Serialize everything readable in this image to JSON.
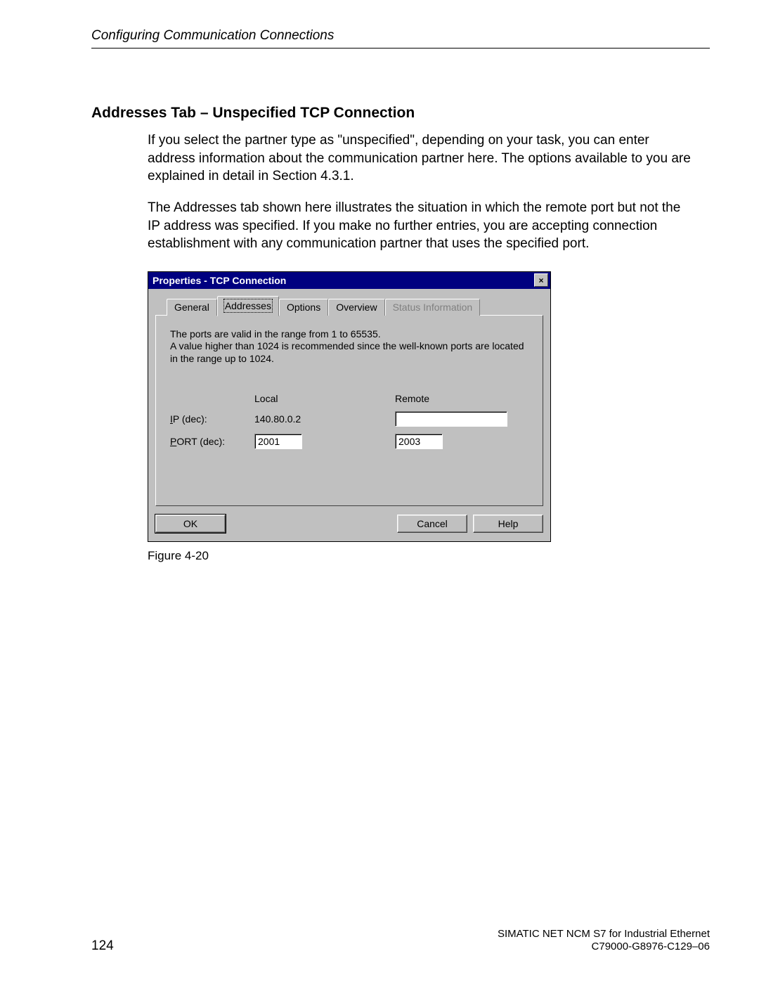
{
  "header": {
    "running_title": "Configuring Communication Connections"
  },
  "section": {
    "title": "Addresses Tab – Unspecified TCP Connection",
    "para1": "If you select the partner type as \"unspecified\", depending on your task, you can enter address information about the communication partner here. The options available to you are explained in detail in Section 4.3.1.",
    "para2": "The Addresses tab shown here illustrates the situation in which the remote port but not the IP address was specified. If you make no further entries, you are accepting connection establishment with any communication partner that uses the specified port."
  },
  "dialog": {
    "title": "Properties - TCP Connection",
    "tabs": {
      "general": "General",
      "addresses": "Addresses",
      "options": "Options",
      "overview": "Overview",
      "status": "Status Information"
    },
    "info_line1": "The ports are valid in the range from 1 to 65535.",
    "info_line2": "A value higher than 1024 is recommended since the well-known ports are located in the range up to 1024.",
    "col_local": "Local",
    "col_remote": "Remote",
    "row_ip_label": "IP (dec):",
    "row_port_label": "PORT (dec):",
    "local_ip": "140.80.0.2",
    "local_port": "2001",
    "remote_ip": "",
    "remote_port": "2003",
    "buttons": {
      "ok": "OK",
      "cancel": "Cancel",
      "help": "Help"
    },
    "colors": {
      "titlebar_bg": "#000080",
      "titlebar_fg": "#ffffff",
      "face": "#c0c0c0",
      "input_bg": "#ffffff",
      "disabled_text": "#808080"
    }
  },
  "figure": {
    "caption": "Figure 4-20"
  },
  "footer": {
    "page_number": "124",
    "product_line": "SIMATIC NET NCM S7 for Industrial Ethernet",
    "doc_id": "C79000-G8976-C129–06"
  }
}
